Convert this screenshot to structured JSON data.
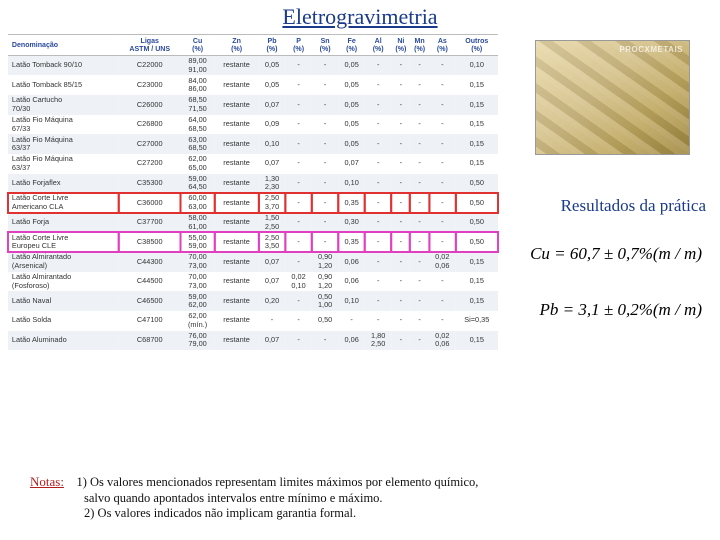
{
  "title": "Eletrogravimetria",
  "photo_watermark": "PROCXMETAIS",
  "results_label": "Resultados da prática",
  "formulas": {
    "cu": "Cu = 60,7 ± 0,7%(m / m)",
    "pb": "Pb = 3,1 ± 0,2%(m / m)"
  },
  "notes_label": "Notas:",
  "notes": {
    "n1": "1) Os valores mencionados representam limites máximos por elemento químico,",
    "n1b": "salvo quando apontados intervalos entre mínimo e máximo.",
    "n2": "2) Os valores indicados não implicam garantia formal."
  },
  "table": {
    "columns": [
      "Denominação",
      "Ligas\nASTM / UNS",
      "Cu\n(%)",
      "Zn\n(%)",
      "Pb\n(%)",
      "P\n(%)",
      "Sn\n(%)",
      "Fe\n(%)",
      "Al\n(%)",
      "Ni\n(%)",
      "Mn\n(%)",
      "As\n(%)",
      "Outros\n(%)"
    ],
    "rows": [
      {
        "hl": "",
        "c": [
          "Latão Tomback 90/10",
          "C22000",
          "89,00\n91,00",
          "restante",
          "0,05",
          "-",
          "-",
          "0,05",
          "-",
          "-",
          "-",
          "-",
          "0,10"
        ]
      },
      {
        "hl": "",
        "c": [
          "Latão Tomback 85/15",
          "C23000",
          "84,00\n86,00",
          "restante",
          "0,05",
          "-",
          "-",
          "0,05",
          "-",
          "-",
          "-",
          "-",
          "0,15"
        ]
      },
      {
        "hl": "",
        "c": [
          "Latão Cartucho\n70/30",
          "C26000",
          "68,50\n71,50",
          "restante",
          "0,07",
          "-",
          "-",
          "0,05",
          "-",
          "-",
          "-",
          "-",
          "0,15"
        ]
      },
      {
        "hl": "",
        "c": [
          "Latão Fio Máquina\n67/33",
          "C26800",
          "64,00\n68,50",
          "restante",
          "0,09",
          "-",
          "-",
          "0,05",
          "-",
          "-",
          "-",
          "-",
          "0,15"
        ]
      },
      {
        "hl": "",
        "c": [
          "Latão Fio Máquina\n63/37",
          "C27000",
          "63,00\n68,50",
          "restante",
          "0,10",
          "-",
          "-",
          "0,05",
          "-",
          "-",
          "-",
          "-",
          "0,15"
        ]
      },
      {
        "hl": "",
        "c": [
          "Latão Fio Máquina\n63/37",
          "C27200",
          "62,00\n65,00",
          "restante",
          "0,07",
          "-",
          "-",
          "0,07",
          "-",
          "-",
          "-",
          "-",
          "0,15"
        ]
      },
      {
        "hl": "",
        "c": [
          "Latão Forjaflex",
          "C35300",
          "59,00\n64,50",
          "restante",
          "1,30\n2,30",
          "-",
          "-",
          "0,10",
          "-",
          "-",
          "-",
          "-",
          "0,50"
        ]
      },
      {
        "hl": "red",
        "c": [
          "Latão Corte Livre\nAmericano CLA",
          "C36000",
          "60,00\n63,00",
          "restante",
          "2,50\n3,70",
          "-",
          "-",
          "0,35",
          "-",
          "-",
          "-",
          "-",
          "0,50"
        ]
      },
      {
        "hl": "",
        "c": [
          "Latão Forja",
          "C37700",
          "58,00\n61,00",
          "restante",
          "1,50\n2,50",
          "-",
          "-",
          "0,30",
          "-",
          "-",
          "-",
          "-",
          "0,50"
        ]
      },
      {
        "hl": "mag",
        "c": [
          "Latão Corte Livre\nEuropeu CLE",
          "C38500",
          "55,00\n59,00",
          "restante",
          "2,50\n3,50",
          "-",
          "-",
          "0,35",
          "-",
          "-",
          "-",
          "-",
          "0,50"
        ]
      },
      {
        "hl": "",
        "c": [
          "Latão Almirantado\n(Arsenical)",
          "C44300",
          "70,00\n73,00",
          "restante",
          "0,07",
          "-",
          "0,90\n1,20",
          "0,06",
          "-",
          "-",
          "-",
          "0,02\n0,06",
          "0,15"
        ]
      },
      {
        "hl": "",
        "c": [
          "Latão Almirantado\n(Fosforoso)",
          "C44500",
          "70,00\n73,00",
          "restante",
          "0,07",
          "0,02\n0,10",
          "0,90\n1,20",
          "0,06",
          "-",
          "-",
          "-",
          "-",
          "0,15"
        ]
      },
      {
        "hl": "",
        "c": [
          "Latão Naval",
          "C46500",
          "59,00\n62,00",
          "restante",
          "0,20",
          "-",
          "0,50\n1,00",
          "0,10",
          "-",
          "-",
          "-",
          "-",
          "0,15"
        ]
      },
      {
        "hl": "",
        "c": [
          "Latão Solda",
          "C47100",
          "62,00\n(mín.)",
          "restante",
          "-",
          "-",
          "0,50",
          "-",
          "-",
          "-",
          "-",
          "-",
          "Si=0,35"
        ]
      },
      {
        "hl": "",
        "c": [
          "Latão Aluminado",
          "C68700",
          "76,00\n79,00",
          "restante",
          "0,07",
          "-",
          "-",
          "0,06",
          "1,80\n2,50",
          "-",
          "-",
          "0,02\n0,06",
          "0,15"
        ]
      }
    ]
  }
}
